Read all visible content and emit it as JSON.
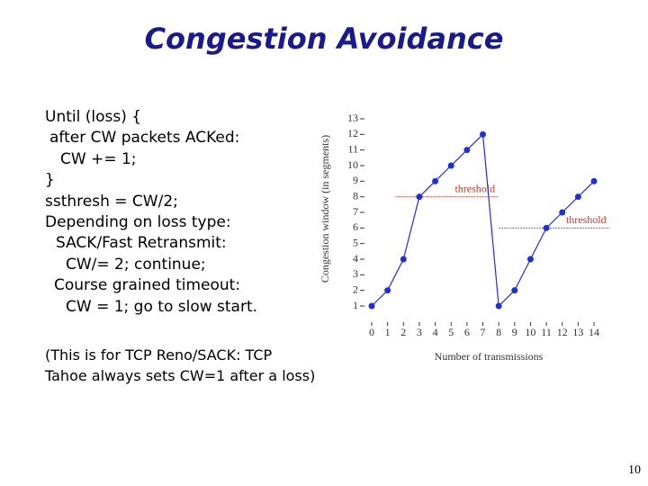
{
  "title": "Congestion Avoidance",
  "code": [
    "Until (loss) {",
    "after CW packets ACKed:",
    "CW += 1;",
    "}",
    "ssthresh = CW/2;",
    "Depending on loss type:",
    "SACK/Fast Retransmit:",
    "CW/= 2; continue;",
    "Course grained timeout:",
    "CW = 1; go to slow start."
  ],
  "note": [
    "(This is for TCP Reno/SACK: TCP",
    "Tahoe always sets CW=1 after a loss)"
  ],
  "page_number": "10",
  "chart_data": {
    "type": "line",
    "x": [
      0,
      1,
      2,
      3,
      4,
      5,
      6,
      7,
      8,
      9,
      10,
      11,
      12,
      13,
      14
    ],
    "series": [
      {
        "color": "#1f2fd6",
        "values": [
          1,
          2,
          4,
          8,
          9,
          10,
          11,
          12,
          1,
          2,
          4,
          6,
          7,
          8,
          9
        ]
      }
    ],
    "xlim": [
      0,
      14
    ],
    "ylim": [
      1,
      13
    ],
    "xticks": [
      0,
      1,
      2,
      3,
      4,
      5,
      6,
      7,
      8,
      9,
      10,
      11,
      12,
      13,
      14
    ],
    "yticks": [
      1,
      2,
      3,
      4,
      5,
      6,
      7,
      8,
      9,
      10,
      11,
      12,
      13
    ],
    "xlabel": "Number of transmissions",
    "ylabel": "Congestion window (in segments)",
    "thresholds": [
      {
        "label": "threshold",
        "value": 8,
        "x": [
          1.5,
          8
        ],
        "color": "#c0392b"
      },
      {
        "label": "threshold",
        "value": 6,
        "x": [
          8,
          15
        ],
        "color": "#c0392b"
      }
    ]
  }
}
